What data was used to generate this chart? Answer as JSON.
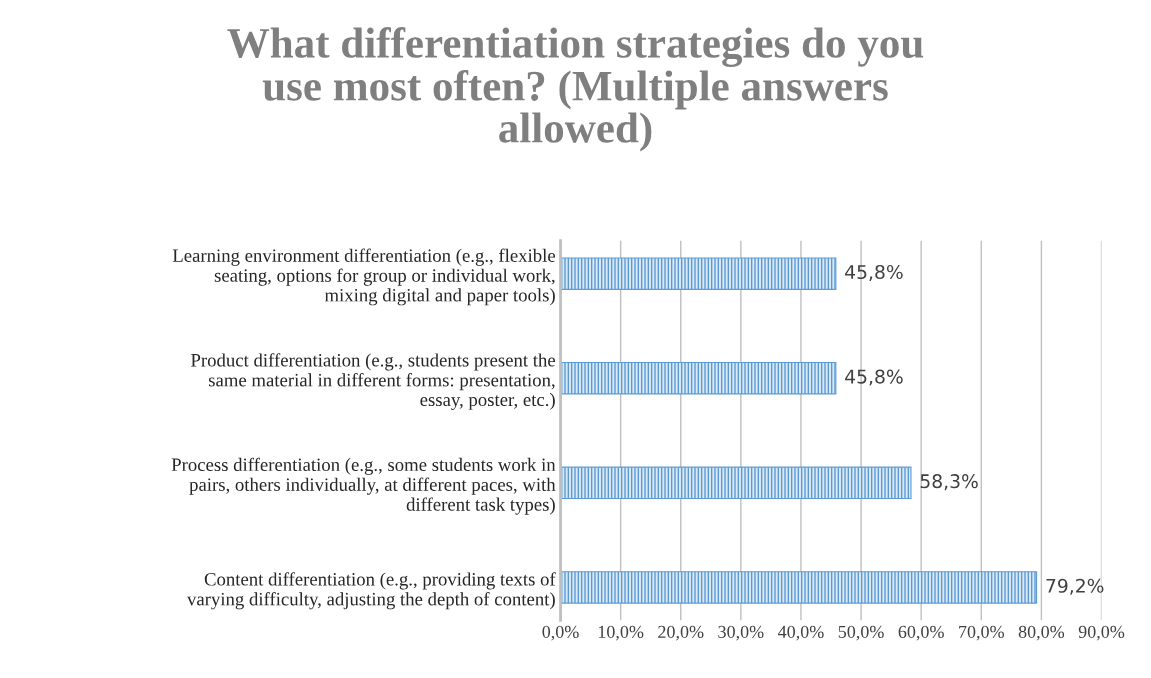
{
  "chart_data": {
    "type": "bar",
    "orientation": "horizontal",
    "title": "What differentiation strategies do you use most often? (Multiple answers allowed)",
    "categories": [
      "Learning environment differentiation (e.g., flexible seating, options for group or individual work, mixing digital and paper tools)",
      "Product differentiation (e.g., students present the same material in different forms: presentation, essay, poster, etc.)",
      "Process differentiation (e.g., some students work in pairs, others individually, at different paces, with different task types)",
      "Content differentiation (e.g., providing texts of varying difficulty, adjusting the depth of content)"
    ],
    "values": [
      45.8,
      45.8,
      58.3,
      79.2
    ],
    "value_labels": [
      "45,8%",
      "45,8%",
      "58,3%",
      "79,2%"
    ],
    "color": "#5b9bd5",
    "xlim": [
      0,
      90
    ],
    "xticks": [
      {
        "value": 0,
        "label": "0,0%"
      },
      {
        "value": 10,
        "label": "10,0%"
      },
      {
        "value": 20,
        "label": "20,0%"
      },
      {
        "value": 30,
        "label": "30,0%"
      },
      {
        "value": 40,
        "label": "40,0%"
      },
      {
        "value": 50,
        "label": "50,0%"
      },
      {
        "value": 60,
        "label": "60,0%"
      },
      {
        "value": 70,
        "label": "70,0%"
      },
      {
        "value": 80,
        "label": "80,0%"
      },
      {
        "value": 90,
        "label": "90,0%"
      }
    ],
    "grid": "x",
    "legend": false
  }
}
